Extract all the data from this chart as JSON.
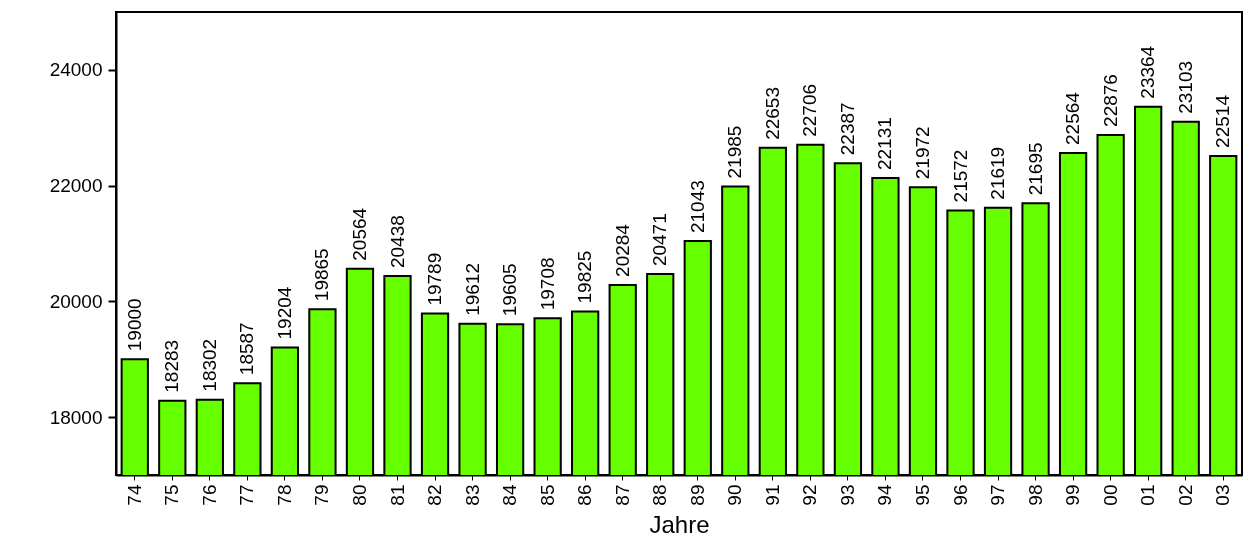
{
  "chart_data": {
    "type": "bar",
    "xlabel": "Jahre",
    "categories": [
      "74",
      "75",
      "76",
      "77",
      "78",
      "79",
      "80",
      "81",
      "82",
      "83",
      "84",
      "85",
      "86",
      "87",
      "88",
      "89",
      "90",
      "91",
      "92",
      "93",
      "94",
      "95",
      "96",
      "97",
      "98",
      "99",
      "00",
      "01",
      "02",
      "03"
    ],
    "values": [
      19000,
      18283,
      18302,
      18587,
      19204,
      19865,
      20564,
      20438,
      19789,
      19612,
      19605,
      19708,
      19825,
      20284,
      20471,
      21043,
      21985,
      22653,
      22706,
      22387,
      22131,
      21972,
      21572,
      21619,
      21695,
      22564,
      22876,
      23364,
      23103,
      22514
    ],
    "color": "#66ff00",
    "ylim": [
      17000,
      25000
    ],
    "yticks": [
      18000,
      20000,
      22000,
      24000
    ],
    "data_labels": true
  }
}
